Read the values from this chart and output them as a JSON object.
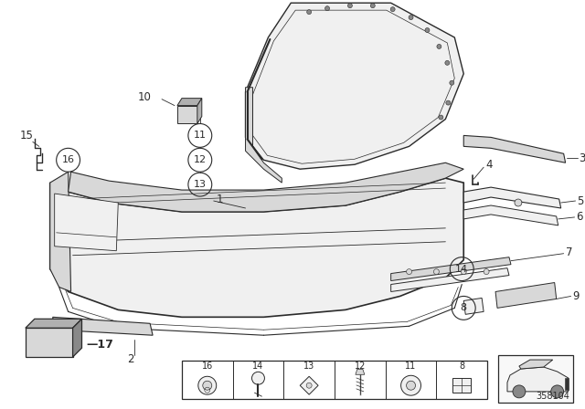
{
  "bg_color": "#ffffff",
  "fig_width": 6.4,
  "fig_height": 4.48,
  "dpi": 100,
  "part_number": "358104",
  "line_color": "#2a2a2a",
  "light_fill": "#f0f0f0",
  "mid_fill": "#d8d8d8",
  "dark_fill": "#b0b0b0",
  "darker_fill": "#888888"
}
